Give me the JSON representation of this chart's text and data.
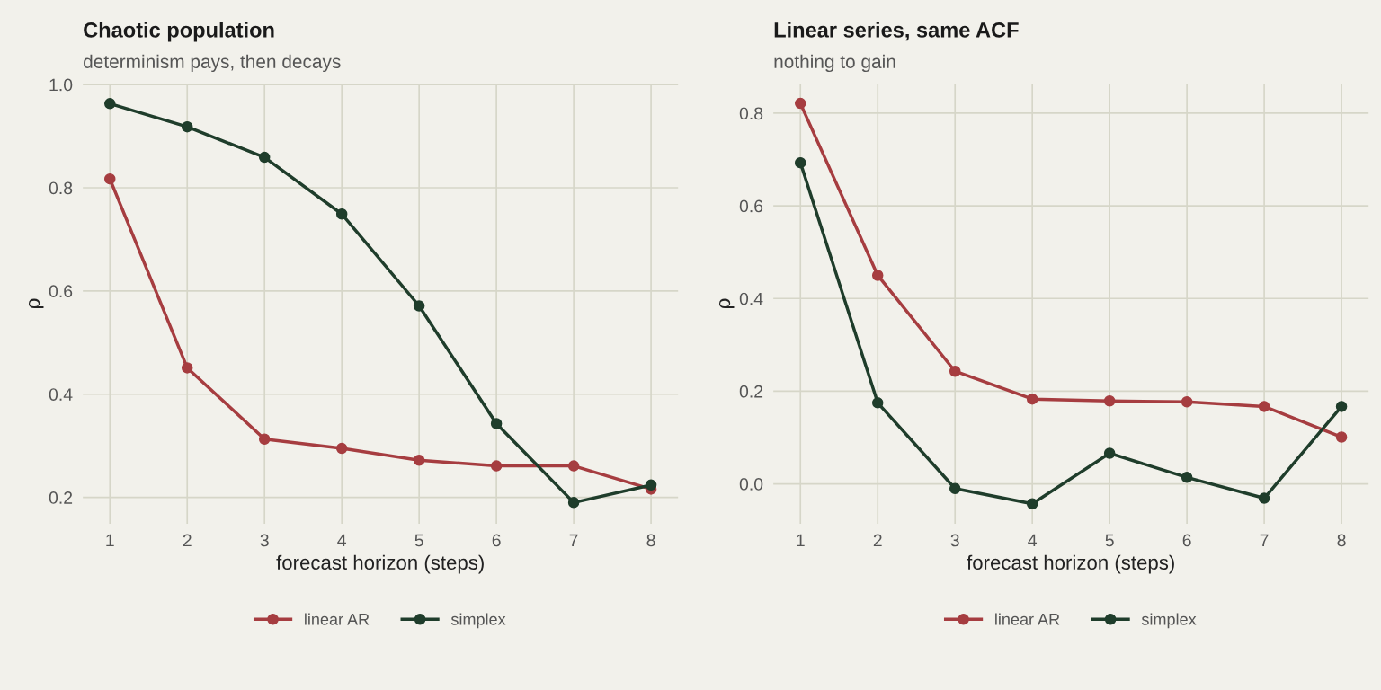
{
  "chart_data": [
    {
      "type": "line",
      "title": "Chaotic population",
      "subtitle": "determinism pays, then decays",
      "xlabel": "forecast horizon (steps)",
      "ylabel": "ρ",
      "x": [
        1,
        2,
        3,
        4,
        5,
        6,
        7,
        8
      ],
      "series": [
        {
          "name": "linear AR",
          "color": "#a63d40",
          "values": [
            0.817,
            0.451,
            0.313,
            0.295,
            0.272,
            0.261,
            0.261,
            0.216
          ]
        },
        {
          "name": "simplex",
          "color": "#1f3d2b",
          "values": [
            0.963,
            0.918,
            0.859,
            0.749,
            0.571,
            0.343,
            0.19,
            0.224
          ]
        }
      ],
      "xlim": [
        0.65,
        8.35
      ],
      "xticks": [
        1,
        2,
        3,
        4,
        5,
        6,
        7,
        8
      ],
      "ylim": [
        0.149,
        1.002
      ],
      "yticks": [
        0.2,
        0.4,
        0.6,
        0.8,
        {
          "value": 1,
          "label": "1.0"
        }
      ],
      "grid": true,
      "legend": "bottom",
      "marker": "circle",
      "line_style": "solid"
    },
    {
      "type": "line",
      "title": "Linear series, same ACF",
      "subtitle": "nothing to gain",
      "xlabel": "forecast horizon (steps)",
      "ylabel": "ρ",
      "x": [
        1,
        2,
        3,
        4,
        5,
        6,
        7,
        8
      ],
      "series": [
        {
          "name": "linear AR",
          "color": "#a63d40",
          "values": [
            0.821,
            0.45,
            0.243,
            0.183,
            0.179,
            0.177,
            0.167,
            0.101
          ]
        },
        {
          "name": "simplex",
          "color": "#1f3d2b",
          "values": [
            0.693,
            0.175,
            -0.01,
            -0.043,
            0.066,
            0.014,
            -0.031,
            0.167
          ]
        }
      ],
      "xlim": [
        0.65,
        8.35
      ],
      "xticks": [
        1,
        2,
        3,
        4,
        5,
        6,
        7,
        8
      ],
      "ylim": [
        -0.086,
        0.864
      ],
      "yticks": [
        {
          "value": 0,
          "label": "0.0"
        },
        0.2,
        0.4,
        0.6,
        0.8
      ],
      "grid": true,
      "legend": "bottom",
      "marker": "circle",
      "line_style": "solid"
    }
  ]
}
